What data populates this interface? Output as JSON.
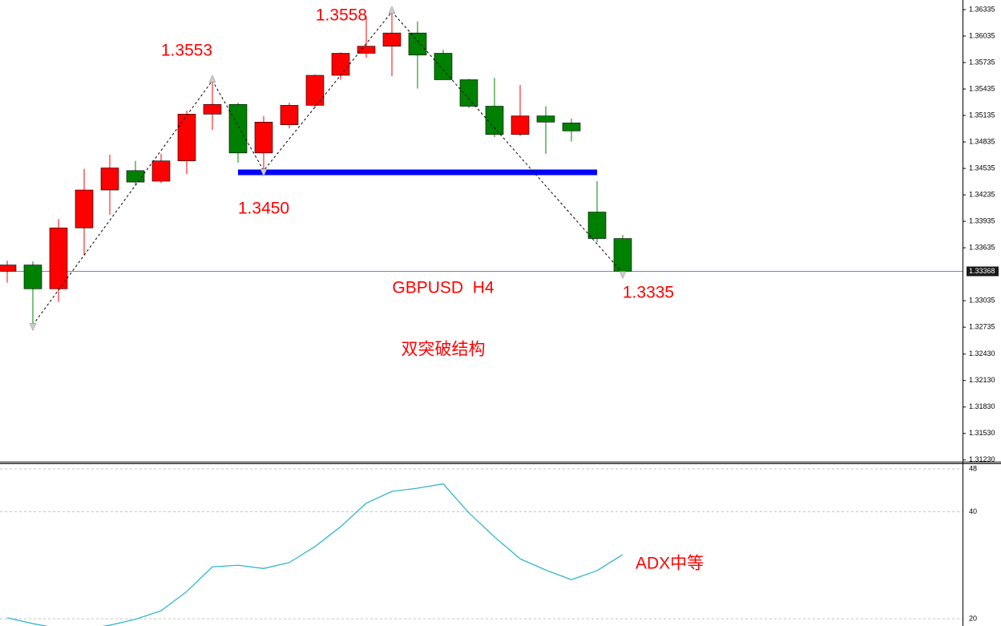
{
  "chart_data": [
    {
      "type": "candlestick",
      "title": "GBPUSD  H4",
      "subtitle": "双突破结构",
      "annotations": [
        "1.3553",
        "1.3558",
        "1.3450",
        "1.3335"
      ],
      "categories": [
        null,
        null,
        null,
        null,
        null,
        null,
        null,
        null,
        null,
        null,
        null,
        null,
        null,
        null,
        null,
        null,
        null,
        null,
        null,
        null,
        null,
        null,
        null,
        null,
        null
      ],
      "open": [
        1.3337,
        1.3344,
        1.3317,
        1.3386,
        1.3429,
        1.3451,
        1.3439,
        1.3462,
        1.3515,
        1.3526,
        1.3471,
        1.3503,
        1.3525,
        1.3559,
        1.3584,
        1.3592,
        1.3607,
        1.3584,
        1.3554,
        1.3524,
        1.3492,
        1.3513,
        1.3505,
        1.3404,
        1.3374
      ],
      "high": [
        1.3349,
        1.3348,
        1.3396,
        1.3453,
        1.3469,
        1.3462,
        1.347,
        1.3519,
        1.3553,
        1.3528,
        1.3513,
        1.3528,
        1.356,
        1.3585,
        1.3626,
        1.3631,
        1.362,
        1.3588,
        1.3555,
        1.3556,
        1.3548,
        1.3524,
        1.351,
        1.3439,
        1.3378
      ],
      "low": [
        1.3324,
        1.3276,
        1.3302,
        1.3355,
        1.3401,
        1.3434,
        1.3437,
        1.3447,
        1.3497,
        1.346,
        1.3451,
        1.3499,
        1.3522,
        1.3554,
        1.3579,
        1.3558,
        1.3544,
        1.3554,
        1.3522,
        1.3489,
        1.349,
        1.347,
        1.3484,
        1.337,
        1.3335
      ],
      "close": [
        1.3344,
        1.3317,
        1.3386,
        1.3429,
        1.3454,
        1.3438,
        1.3462,
        1.3515,
        1.3526,
        1.3471,
        1.3506,
        1.3525,
        1.3559,
        1.3584,
        1.3592,
        1.3607,
        1.3582,
        1.3554,
        1.3524,
        1.3492,
        1.3513,
        1.3506,
        1.3496,
        1.3374,
        1.3337
      ],
      "up_color": "#ff0000",
      "down_color": "#008000",
      "zigzag": {
        "x": [
          1,
          8,
          10,
          15,
          24
        ],
        "values": [
          1.3276,
          1.3553,
          1.3451,
          1.3631,
          1.3335
        ]
      },
      "level": {
        "value": 1.3449,
        "x": [
          9,
          23
        ],
        "color": "#0000ff"
      },
      "price_line": 1.33368,
      "ylim": [
        1.3121,
        1.36444
      ],
      "yticks": [
        1.36335,
        1.36035,
        1.35735,
        1.35435,
        1.35135,
        1.34835,
        1.34535,
        1.34235,
        1.33935,
        1.33635,
        1.33035,
        1.32735,
        {
          "value": 1.3243,
          "label": "1.32430"
        },
        {
          "value": 1.3213,
          "label": "1.32130"
        },
        {
          "value": 1.3183,
          "label": "1.31830"
        },
        {
          "value": 1.3153,
          "label": "1.31530"
        },
        {
          "value": 1.3123,
          "label": "1.31230"
        }
      ]
    },
    {
      "type": "line",
      "annotation": "ADX中等",
      "series": [
        {
          "color": "#20b2c8",
          "values": [
            20.2,
            19.1,
            18.2,
            18.0,
            18.8,
            19.9,
            21.5,
            25.1,
            29.7,
            30.0,
            29.4,
            30.5,
            33.5,
            37.2,
            41.6,
            43.8,
            44.4,
            45.2,
            39.8,
            35.3,
            31.2,
            29.1,
            27.3,
            29.0,
            32.0
          ]
        }
      ],
      "ylim": [
        18.65,
        49.05
      ],
      "yticks": [
        20,
        40,
        48
      ],
      "grid": true
    }
  ]
}
